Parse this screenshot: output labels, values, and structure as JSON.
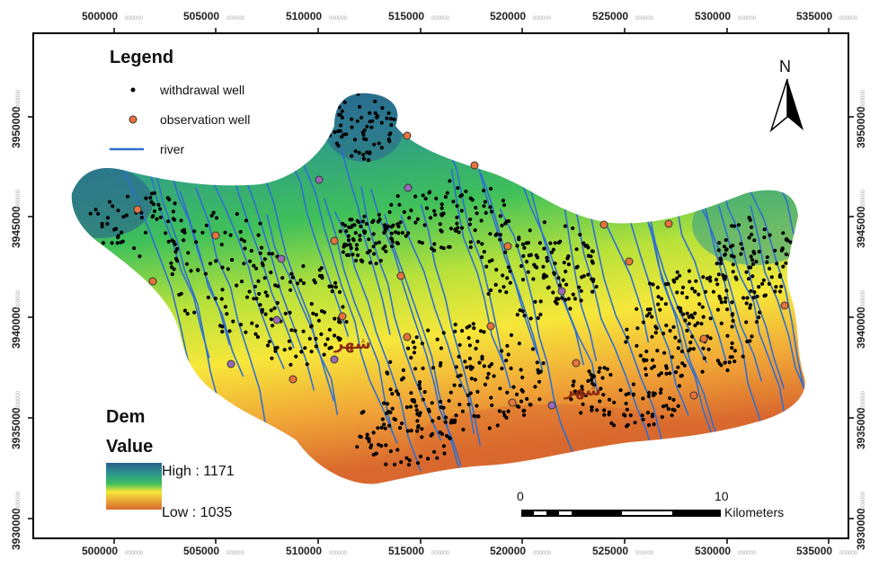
{
  "axes": {
    "x_ticks": [
      "500000",
      "505000",
      "510000",
      "515000",
      "520000",
      "525000",
      "530000",
      "535000"
    ],
    "y_ticks": [
      "3950000",
      "3945000",
      "3940000",
      "3935000",
      "3930000"
    ],
    "tick_suffix": "000000"
  },
  "legend": {
    "title": "Legend",
    "items": [
      {
        "label": "withdrawal well",
        "symbol": "black-dot-icon",
        "color": "#000000"
      },
      {
        "label": "observation well",
        "symbol": "orange-circle-icon",
        "color": "#e8743b"
      },
      {
        "label": "river",
        "symbol": "blue-line-icon",
        "color": "#2f6fd0"
      }
    ]
  },
  "dem": {
    "title": "Dem",
    "subtitle": "Value",
    "high_label": "High : 1171",
    "low_label": "Low : 1035",
    "colors": [
      "#2a5f8f",
      "#2e9a8c",
      "#3fc05a",
      "#b8e23a",
      "#f7e73a",
      "#f0a437",
      "#d9682e"
    ]
  },
  "north_arrow": {
    "label": "N"
  },
  "scale_bar": {
    "start_label": "0",
    "mid_label": "10",
    "unit": "Kilometers"
  },
  "city_labels": [
    "شهر",
    "شهر"
  ],
  "colors": {
    "withdrawal_well": "#000000",
    "observation_well": "#e8743b",
    "river": "#2f6fd0",
    "frame": "#000000"
  }
}
